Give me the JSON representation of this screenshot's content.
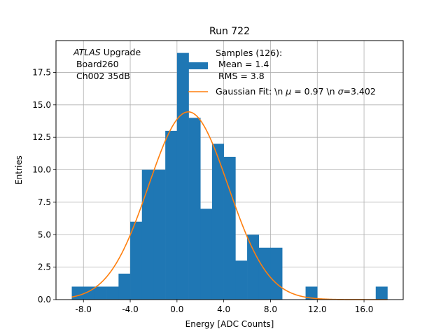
{
  "chart_data": {
    "type": "bar",
    "title": "Run 722",
    "xlabel": "Energy [ADC Counts]",
    "ylabel": "Entries",
    "xlim": [
      -10.35,
      19.35
    ],
    "ylim": [
      0,
      19.95
    ],
    "grid": true,
    "x_ticks": [
      {
        "value": -8,
        "label": "-8.0"
      },
      {
        "value": -4,
        "label": "-4.0"
      },
      {
        "value": 0,
        "label": "0.0"
      },
      {
        "value": 4,
        "label": "4.0"
      },
      {
        "value": 8,
        "label": "8.0"
      },
      {
        "value": 12,
        "label": "12.0"
      },
      {
        "value": 16,
        "label": "16.0"
      }
    ],
    "y_ticks": [
      {
        "value": 0,
        "label": "0.0"
      },
      {
        "value": 2.5,
        "label": "2.5"
      },
      {
        "value": 5,
        "label": "5.0"
      },
      {
        "value": 7.5,
        "label": "7.5"
      },
      {
        "value": 10,
        "label": "10.0"
      },
      {
        "value": 12.5,
        "label": "12.5"
      },
      {
        "value": 15,
        "label": "15.0"
      },
      {
        "value": 17.5,
        "label": "17.5"
      }
    ],
    "histogram": {
      "bin_start": -9,
      "bin_width": 1,
      "counts": [
        1,
        1,
        1,
        1,
        2,
        6,
        10,
        10,
        13,
        19,
        14,
        7,
        12,
        11,
        3,
        5,
        4,
        4,
        0,
        0,
        1,
        0,
        0,
        0,
        0,
        0,
        1
      ],
      "color": "#1f77b4"
    },
    "gaussian_fit": {
      "mu": 0.97,
      "sigma": 3.402,
      "peak": 14.46,
      "x_range": [
        -9,
        18
      ],
      "color": "#ff7f0e"
    },
    "annotation": {
      "line1_italic": "ATLAS",
      "line1_rest": " Upgrade",
      "line2": " Board260",
      "line3": " Ch002 35dB"
    },
    "legend": {
      "position": "top-right",
      "entries": [
        {
          "type": "patch",
          "line1": "Samples (126):",
          "line2": " Mean = 1.4",
          "line3": " RMS = 3.8",
          "color": "#1f77b4"
        },
        {
          "type": "line",
          "text_before": "Gaussian Fit: \\n ",
          "mu_symbol": "μ",
          "mid_text": " = 0.97 \\n ",
          "sigma_symbol": "σ",
          "after_text": "=3.402",
          "color": "#ff7f0e"
        }
      ]
    }
  }
}
